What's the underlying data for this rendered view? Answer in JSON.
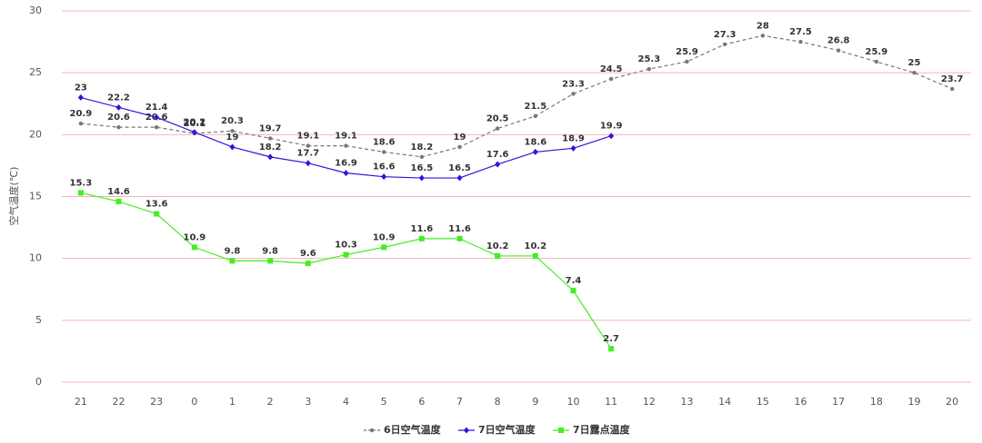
{
  "chart_data": {
    "type": "line",
    "y_label": "空气温度(℃)",
    "categories": [
      "21",
      "22",
      "23",
      "0",
      "1",
      "2",
      "3",
      "4",
      "5",
      "6",
      "7",
      "8",
      "9",
      "10",
      "11",
      "12",
      "13",
      "14",
      "15",
      "16",
      "17",
      "18",
      "19",
      "20"
    ],
    "series": [
      {
        "name": "6日空气温度",
        "color": "#777777",
        "dash": true,
        "marker": "circle",
        "values": [
          20.9,
          20.6,
          20.6,
          20.1,
          20.3,
          19.7,
          19.1,
          19.1,
          18.6,
          18.2,
          19,
          20.5,
          21.5,
          23.3,
          24.5,
          25.3,
          25.9,
          27.3,
          28,
          27.5,
          26.8,
          25.9,
          25,
          23.7
        ]
      },
      {
        "name": "7日空气温度",
        "color": "#3311dd",
        "dash": false,
        "marker": "diamond",
        "values": [
          23,
          22.2,
          21.4,
          20.2,
          19,
          18.2,
          17.7,
          16.9,
          16.6,
          16.5,
          16.5,
          17.6,
          18.6,
          18.9,
          19.9,
          null,
          null,
          null,
          null,
          null,
          null,
          null,
          null,
          null
        ]
      },
      {
        "name": "7日露点温度",
        "color": "#44ee22",
        "dash": false,
        "marker": "square",
        "values": [
          15.3,
          14.6,
          13.6,
          10.9,
          9.8,
          9.8,
          9.6,
          10.3,
          10.9,
          11.6,
          11.6,
          10.2,
          10.2,
          7.4,
          2.7,
          null,
          null,
          null,
          null,
          null,
          null,
          null,
          null,
          null
        ]
      }
    ],
    "ylim": [
      0,
      30
    ],
    "yticks": [
      0,
      5,
      10,
      15,
      20,
      25,
      30
    ],
    "grid": true,
    "legend": "bottom"
  }
}
